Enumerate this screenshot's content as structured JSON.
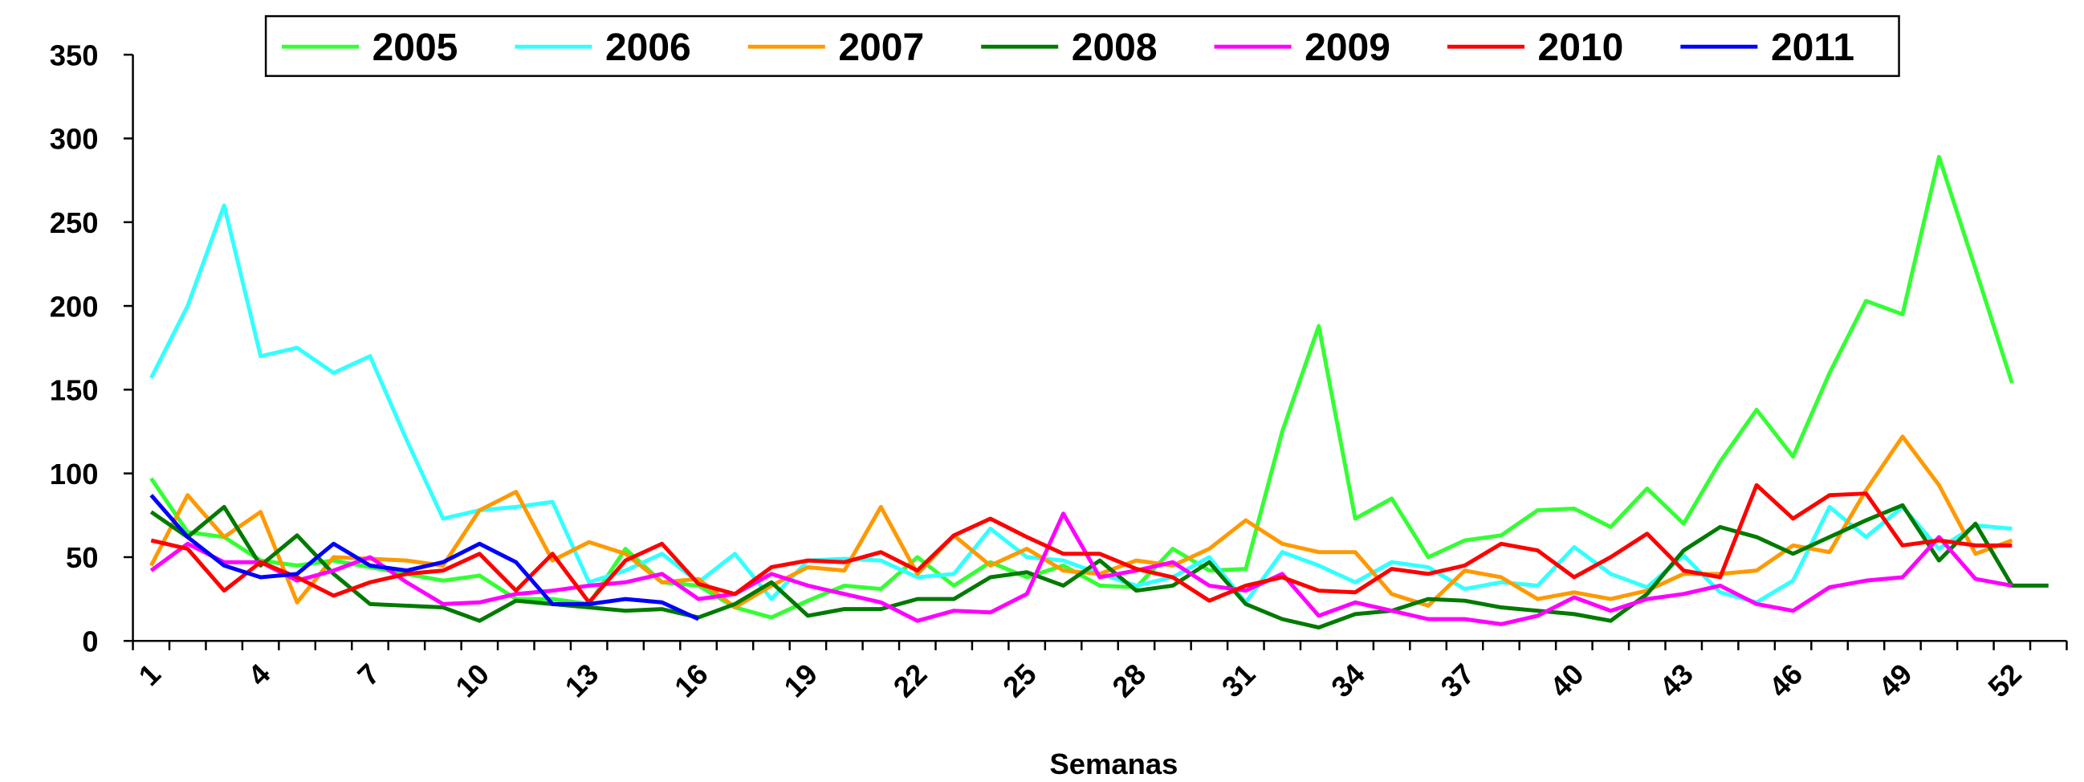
{
  "chart_data": {
    "type": "line",
    "x_label": "Semanas",
    "categories": [
      1,
      null,
      null,
      4,
      null,
      null,
      7,
      null,
      null,
      10,
      null,
      null,
      13,
      null,
      null,
      16,
      null,
      null,
      19,
      null,
      null,
      22,
      null,
      null,
      25,
      null,
      null,
      28,
      null,
      null,
      31,
      null,
      null,
      34,
      null,
      null,
      37,
      null,
      null,
      40,
      null,
      null,
      43,
      null,
      null,
      46,
      null,
      null,
      49,
      null,
      null,
      52,
      null
    ],
    "ylim": [
      0,
      350
    ],
    "yticks": [
      0,
      50,
      100,
      150,
      200,
      250,
      300,
      350
    ],
    "legend": "top",
    "series": [
      {
        "name": "2005",
        "color": "#33ff33",
        "values": [
          97,
          65,
          62,
          48,
          45,
          48,
          44,
          40,
          36,
          39,
          25,
          25,
          22,
          55,
          35,
          33,
          20,
          14,
          24,
          33,
          31,
          50,
          33,
          47,
          38,
          45,
          33,
          32,
          55,
          42,
          43,
          125,
          188,
          73,
          85,
          50,
          60,
          63,
          78,
          79,
          68,
          91,
          70,
          107,
          138,
          110,
          160,
          203,
          195,
          289,
          222,
          154,
          null
        ]
      },
      {
        "name": "2006",
        "color": "#33ffff",
        "values": [
          157,
          200,
          260,
          170,
          175,
          160,
          170,
          120,
          73,
          78,
          80,
          83,
          35,
          42,
          52,
          35,
          52,
          25,
          48,
          49,
          48,
          38,
          40,
          67,
          50,
          48,
          40,
          33,
          38,
          50,
          23,
          53,
          45,
          35,
          47,
          44,
          31,
          35,
          33,
          56,
          40,
          32,
          51,
          29,
          23,
          36,
          80,
          62,
          80,
          55,
          69,
          67,
          null
        ]
      },
      {
        "name": "2007",
        "color": "#ff9900",
        "values": [
          45,
          87,
          62,
          77,
          23,
          50,
          49,
          48,
          45,
          78,
          89,
          48,
          59,
          52,
          35,
          37,
          20,
          33,
          44,
          42,
          80,
          40,
          63,
          45,
          55,
          42,
          40,
          48,
          45,
          55,
          72,
          58,
          53,
          53,
          28,
          21,
          42,
          38,
          25,
          29,
          25,
          30,
          40,
          40,
          42,
          57,
          53,
          90,
          122,
          93,
          52,
          60,
          null
        ]
      },
      {
        "name": "2008",
        "color": "#007a00",
        "values": [
          77,
          62,
          80,
          45,
          63,
          40,
          22,
          21,
          20,
          12,
          24,
          22,
          20,
          18,
          19,
          14,
          22,
          35,
          15,
          19,
          19,
          25,
          25,
          38,
          41,
          33,
          48,
          30,
          33,
          47,
          22,
          13,
          8,
          16,
          18,
          25,
          24,
          20,
          18,
          16,
          12,
          28,
          54,
          68,
          62,
          52,
          62,
          72,
          81,
          48,
          70,
          33,
          33
        ]
      },
      {
        "name": "2009",
        "color": "#ff00ff",
        "values": [
          42,
          58,
          47,
          47,
          36,
          42,
          50,
          35,
          22,
          23,
          28,
          30,
          33,
          35,
          40,
          25,
          28,
          40,
          33,
          28,
          23,
          12,
          18,
          17,
          28,
          76,
          38,
          42,
          47,
          33,
          30,
          40,
          15,
          23,
          18,
          13,
          13,
          10,
          15,
          26,
          18,
          25,
          28,
          33,
          22,
          18,
          32,
          36,
          38,
          62,
          37,
          33,
          null
        ]
      },
      {
        "name": "2010",
        "color": "#ff0000",
        "values": [
          60,
          55,
          30,
          47,
          38,
          27,
          35,
          40,
          42,
          52,
          30,
          52,
          23,
          48,
          58,
          34,
          28,
          44,
          48,
          47,
          53,
          42,
          63,
          73,
          62,
          52,
          52,
          43,
          38,
          24,
          33,
          38,
          30,
          29,
          43,
          40,
          45,
          58,
          54,
          38,
          50,
          64,
          42,
          38,
          93,
          73,
          87,
          88,
          57,
          60,
          57,
          57,
          null
        ]
      },
      {
        "name": "2011",
        "color": "#0000ff",
        "values": [
          87,
          62,
          45,
          38,
          40,
          58,
          45,
          42,
          47,
          58,
          47,
          22,
          22,
          25,
          23,
          13,
          null,
          null,
          null,
          null,
          null,
          null,
          null,
          null,
          null,
          null,
          null,
          null,
          null,
          null,
          null,
          null,
          null,
          null,
          null,
          null,
          null,
          null,
          null,
          null,
          null,
          null,
          null,
          null,
          null,
          null,
          null,
          null,
          null,
          null,
          null,
          null,
          null
        ]
      }
    ]
  }
}
